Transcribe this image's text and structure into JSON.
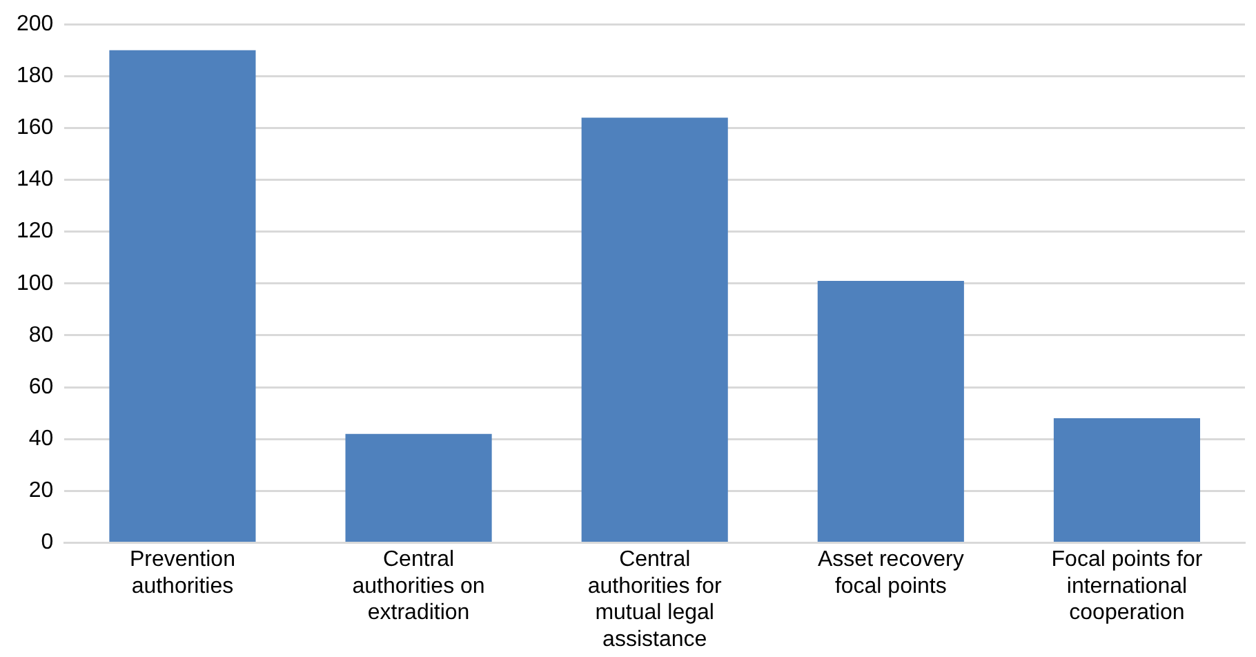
{
  "chart_data": {
    "type": "bar",
    "categories": [
      "Prevention authorities",
      "Central authorities on extradition",
      "Central authorities for mutual legal assistance",
      "Asset recovery focal points",
      "Focal points for international cooperation"
    ],
    "values": [
      190,
      42,
      164,
      101,
      48
    ],
    "color": "#4f81bd",
    "ylim": [
      0,
      200
    ],
    "yticks": [
      0,
      20,
      40,
      60,
      80,
      100,
      120,
      140,
      160,
      180,
      200
    ],
    "grid": "y"
  }
}
